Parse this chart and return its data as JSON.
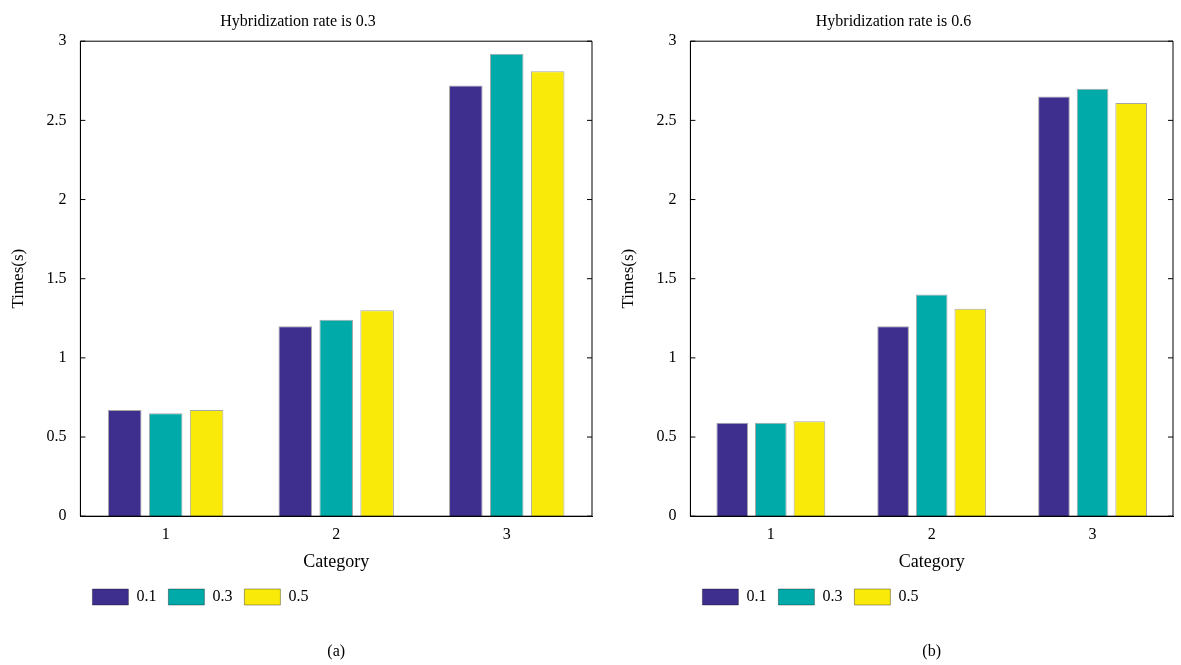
{
  "chart_data": [
    {
      "type": "bar",
      "title": "Hybridization rate is 0.3",
      "xlabel": "Category",
      "ylabel": "Times(s)",
      "categories": [
        "1",
        "2",
        "3"
      ],
      "series": [
        {
          "name": "0.1",
          "color": "#3e2f8f",
          "values": [
            0.67,
            1.2,
            2.72
          ]
        },
        {
          "name": "0.3",
          "color": "#00aaa8",
          "values": [
            0.65,
            1.24,
            2.92
          ]
        },
        {
          "name": "0.5",
          "color": "#f9ea0a",
          "values": [
            0.67,
            1.3,
            2.81
          ]
        }
      ],
      "ylim": [
        0,
        3
      ],
      "yticks": [
        0,
        0.5,
        1,
        1.5,
        2,
        2.5,
        3
      ],
      "grid": false,
      "legend": "bottom left",
      "annotations": [
        "(a)"
      ]
    },
    {
      "type": "bar",
      "title": "Hybridization rate is 0.6",
      "xlabel": "Category",
      "ylabel": "Times(s)",
      "categories": [
        "1",
        "2",
        "3"
      ],
      "series": [
        {
          "name": "0.1",
          "color": "#3e2f8f",
          "values": [
            0.59,
            1.2,
            2.65
          ]
        },
        {
          "name": "0.3",
          "color": "#00aaa8",
          "values": [
            0.59,
            1.4,
            2.7
          ]
        },
        {
          "name": "0.5",
          "color": "#f9ea0a",
          "values": [
            0.6,
            1.31,
            2.61
          ]
        }
      ],
      "ylim": [
        0,
        3
      ],
      "yticks": [
        0,
        0.5,
        1,
        1.5,
        2,
        2.5,
        3
      ],
      "grid": false,
      "legend": "bottom left",
      "annotations": [
        "(b)"
      ]
    }
  ]
}
